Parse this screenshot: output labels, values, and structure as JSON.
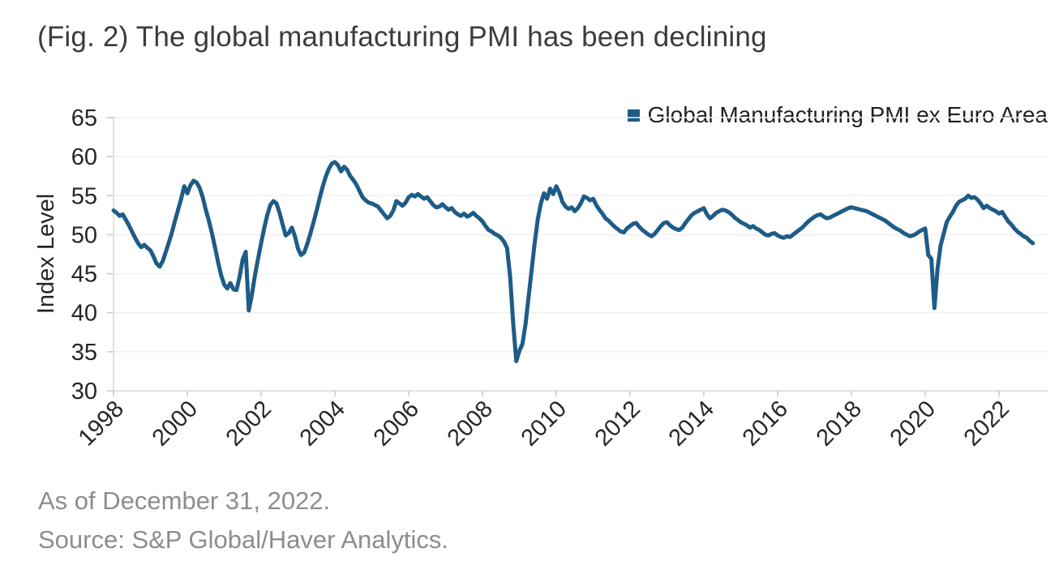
{
  "title": "(Fig. 2) The global manufacturing PMI has been declining",
  "footnotes": {
    "as_of": "As of December 31, 2022.",
    "source": "Source: S&P Global/Haver Analytics."
  },
  "colors": {
    "line": "#1e5c87",
    "legend_marker": "#1e5c87",
    "grid": "#f0f0f0",
    "axis": "#d9d9d9",
    "tick": "#c9c9c9",
    "tick_text": "#262626",
    "title_text": "#3c3c3c",
    "footnote_text": "#8d8d8d"
  },
  "chart_data": {
    "type": "line",
    "title": "(Fig. 2) The global manufacturing PMI has been declining",
    "xlabel": "",
    "ylabel": "Index Level",
    "ylim": [
      30,
      65
    ],
    "y_ticks": [
      30,
      35,
      40,
      45,
      50,
      55,
      60,
      65
    ],
    "x_ticks": [
      1998,
      2000,
      2002,
      2004,
      2006,
      2008,
      2010,
      2012,
      2014,
      2016,
      2018,
      2020,
      2022
    ],
    "grid": "horizontal",
    "legend_position": "top-right",
    "series": [
      {
        "name": "Global Manufacturing PMI ex Euro Area",
        "color": "#1e5c87",
        "frequency": "monthly",
        "start": "1998-01",
        "end": "2022-12",
        "values_by_year": {
          "1998": [
            53.1,
            52.8,
            52.4,
            52.6,
            51.9,
            51.2,
            50.4,
            49.6,
            48.9,
            48.4,
            48.7,
            48.3
          ],
          "1999": [
            48.0,
            47.2,
            46.3,
            45.9,
            46.6,
            47.8,
            49.0,
            50.3,
            51.8,
            53.2,
            54.6,
            56.2
          ],
          "2000": [
            55.3,
            56.3,
            56.9,
            56.7,
            56.0,
            54.8,
            53.2,
            51.8,
            50.2,
            48.4,
            46.5,
            44.8
          ],
          "2001": [
            43.6,
            43.1,
            43.8,
            43.0,
            42.9,
            44.6,
            46.8,
            47.8,
            40.3,
            42.3,
            44.8,
            46.9
          ],
          "2002": [
            48.9,
            50.8,
            52.5,
            53.8,
            54.3,
            54.0,
            52.8,
            51.3,
            49.9,
            50.2,
            50.9,
            49.8
          ],
          "2003": [
            48.2,
            47.4,
            47.7,
            48.8,
            50.1,
            51.5,
            53.0,
            54.6,
            56.1,
            57.4,
            58.4,
            59.1
          ],
          "2004": [
            59.3,
            58.9,
            58.1,
            58.7,
            58.3,
            57.5,
            57.0,
            56.4,
            55.6,
            54.8,
            54.4,
            54.1
          ],
          "2005": [
            54.0,
            53.8,
            53.6,
            53.1,
            52.6,
            52.1,
            52.4,
            53.1,
            54.3,
            54.0,
            53.7,
            54.1
          ],
          "2006": [
            54.8,
            55.1,
            54.9,
            55.2,
            54.9,
            54.6,
            54.8,
            54.3,
            53.8,
            53.5,
            53.6,
            53.9
          ],
          "2007": [
            53.5,
            53.2,
            53.4,
            52.9,
            52.6,
            52.4,
            52.7,
            52.3,
            52.5,
            52.8,
            52.4,
            52.1
          ],
          "2008": [
            51.7,
            51.1,
            50.6,
            50.4,
            50.1,
            49.9,
            49.6,
            49.1,
            48.3,
            44.6,
            38.6,
            33.8
          ],
          "2009": [
            35.1,
            36.0,
            38.5,
            42.0,
            45.5,
            49.0,
            52.0,
            54.0,
            55.3,
            54.6,
            55.9,
            55.2
          ],
          "2010": [
            56.2,
            55.4,
            54.2,
            53.6,
            53.3,
            53.5,
            53.0,
            53.4,
            54.0,
            54.9,
            54.7,
            54.4
          ],
          "2011": [
            54.6,
            53.8,
            53.2,
            52.7,
            52.1,
            51.8,
            51.4,
            51.0,
            50.7,
            50.4,
            50.3,
            50.8
          ],
          "2012": [
            51.1,
            51.4,
            51.5,
            51.0,
            50.6,
            50.3,
            50.0,
            49.8,
            50.1,
            50.6,
            51.1,
            51.5
          ],
          "2013": [
            51.6,
            51.2,
            50.9,
            50.7,
            50.6,
            50.9,
            51.5,
            52.0,
            52.5,
            52.8,
            53.0,
            53.2
          ],
          "2014": [
            53.4,
            52.6,
            52.1,
            52.4,
            52.8,
            53.0,
            53.2,
            53.1,
            52.9,
            52.6,
            52.2,
            51.9
          ],
          "2015": [
            51.6,
            51.4,
            51.2,
            50.9,
            51.1,
            50.8,
            50.6,
            50.3,
            50.0,
            49.9,
            50.1,
            50.2
          ],
          "2016": [
            49.9,
            49.7,
            49.6,
            49.8,
            49.7,
            50.0,
            50.3,
            50.6,
            50.9,
            51.3,
            51.7,
            52.0
          ],
          "2017": [
            52.3,
            52.5,
            52.6,
            52.3,
            52.1,
            52.2,
            52.4,
            52.6,
            52.8,
            53.0,
            53.2,
            53.4
          ],
          "2018": [
            53.5,
            53.4,
            53.3,
            53.2,
            53.1,
            53.0,
            52.8,
            52.6,
            52.4,
            52.2,
            52.0,
            51.8
          ],
          "2019": [
            51.5,
            51.2,
            50.9,
            50.7,
            50.5,
            50.2,
            50.0,
            49.8,
            49.9,
            50.1,
            50.4,
            50.6
          ],
          "2020": [
            50.8,
            47.4,
            46.9,
            40.6,
            45.6,
            48.6,
            50.1,
            51.6,
            52.3,
            52.9,
            53.7,
            54.2
          ],
          "2021": [
            54.4,
            54.6,
            55.0,
            54.7,
            54.8,
            54.5,
            54.0,
            53.4,
            53.7,
            53.4,
            53.2,
            53.0
          ],
          "2022": [
            52.7,
            52.9,
            52.3,
            51.7,
            51.3,
            50.8,
            50.4,
            50.1,
            49.8,
            49.6,
            49.2,
            48.9
          ]
        }
      }
    ]
  }
}
